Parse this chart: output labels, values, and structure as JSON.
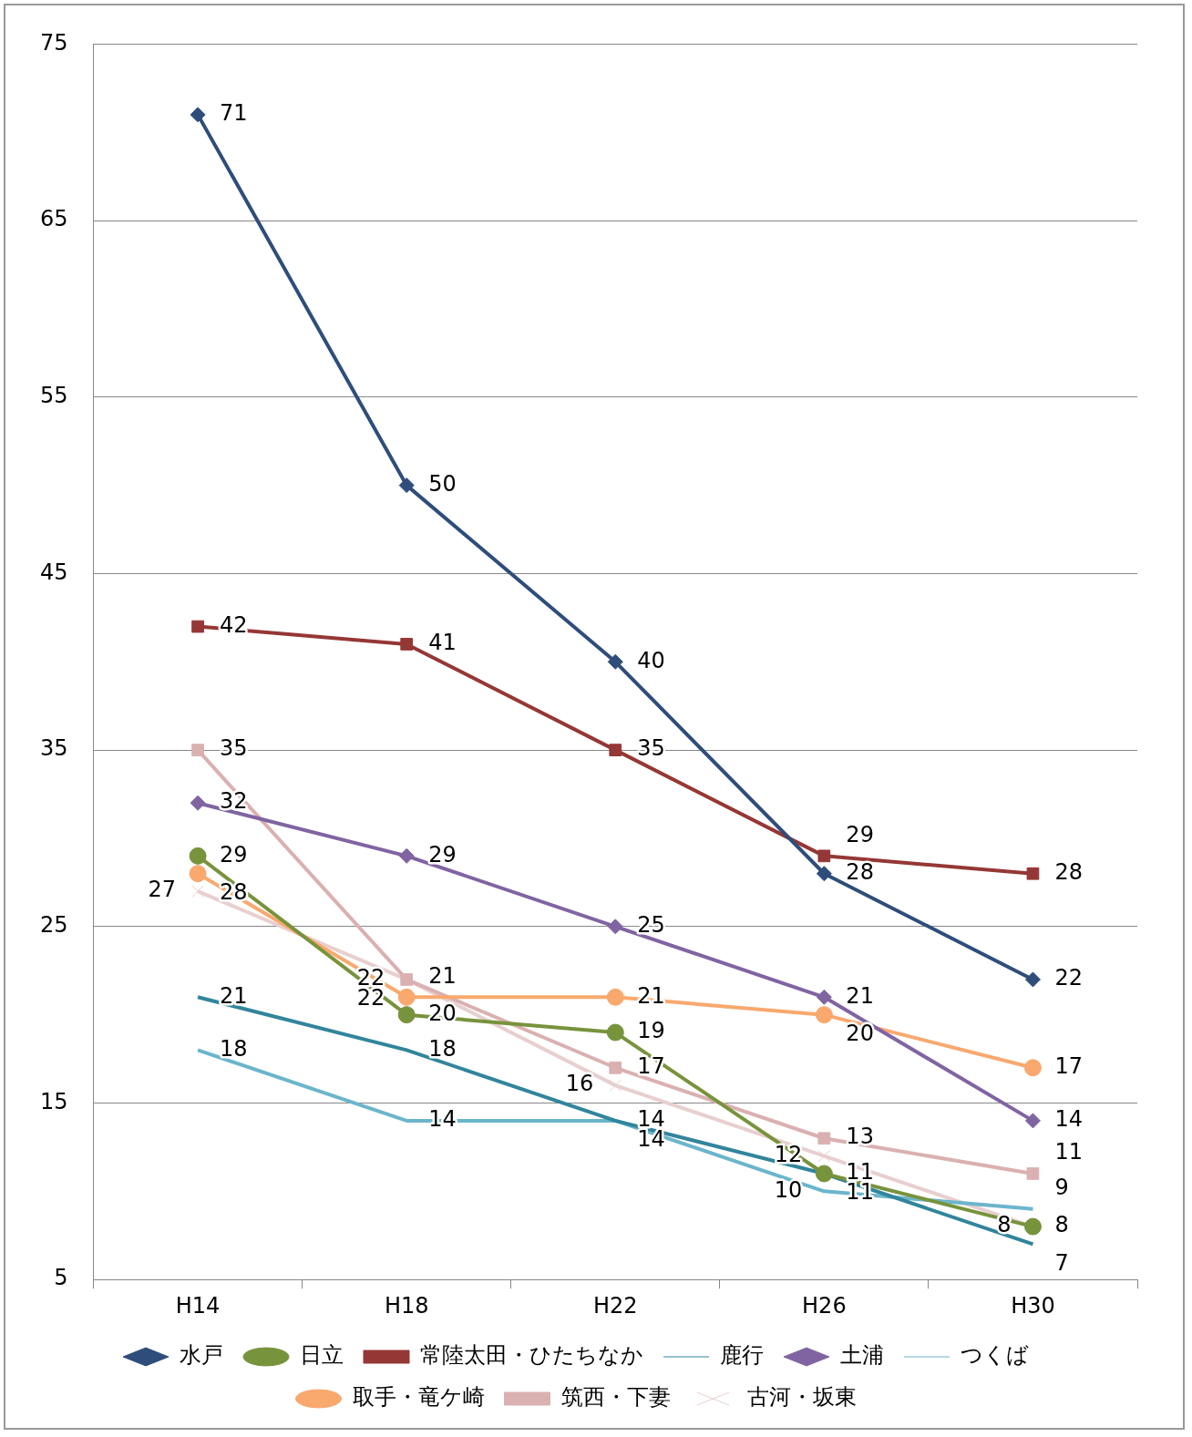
{
  "chart_data": {
    "type": "line",
    "categories": [
      "H14",
      "H18",
      "H22",
      "H26",
      "H30"
    ],
    "ylim": [
      5,
      75
    ],
    "yticks": [
      5,
      15,
      25,
      35,
      45,
      55,
      65,
      75
    ],
    "grid": "y",
    "legend": "bottom",
    "data_labels": true,
    "series": [
      {
        "name": "水戸",
        "color": "#2e4d7b",
        "marker": "diamond",
        "values": [
          71,
          50,
          40,
          28,
          22
        ]
      },
      {
        "name": "日立",
        "color": "#77933c",
        "marker": "circle",
        "values": [
          29,
          20,
          19,
          11,
          8
        ]
      },
      {
        "name": "常陸太田・ひたちなか",
        "color": "#953735",
        "marker": "square",
        "values": [
          42,
          41,
          35,
          29,
          28
        ]
      },
      {
        "name": "鹿行",
        "color": "#31859c",
        "marker": "none",
        "values": [
          21,
          18,
          14,
          11,
          7
        ]
      },
      {
        "name": "土浦",
        "color": "#8064a2",
        "marker": "diamond",
        "values": [
          32,
          29,
          25,
          21,
          14
        ]
      },
      {
        "name": "つくば",
        "color": "#6bb5cc",
        "marker": "none",
        "values": [
          18,
          14,
          14,
          10,
          9
        ]
      },
      {
        "name": "取手・竜ケ崎",
        "color": "#f9a86e",
        "marker": "circle",
        "values": [
          28,
          21,
          21,
          20,
          17
        ]
      },
      {
        "name": "筑西・下妻",
        "color": "#dab0b0",
        "marker": "square",
        "values": [
          35,
          22,
          17,
          13,
          11
        ]
      },
      {
        "name": "古河・坂東",
        "color": "#e8cfcf",
        "marker": "cross",
        "values": [
          27,
          22,
          16,
          12,
          8
        ]
      }
    ]
  }
}
